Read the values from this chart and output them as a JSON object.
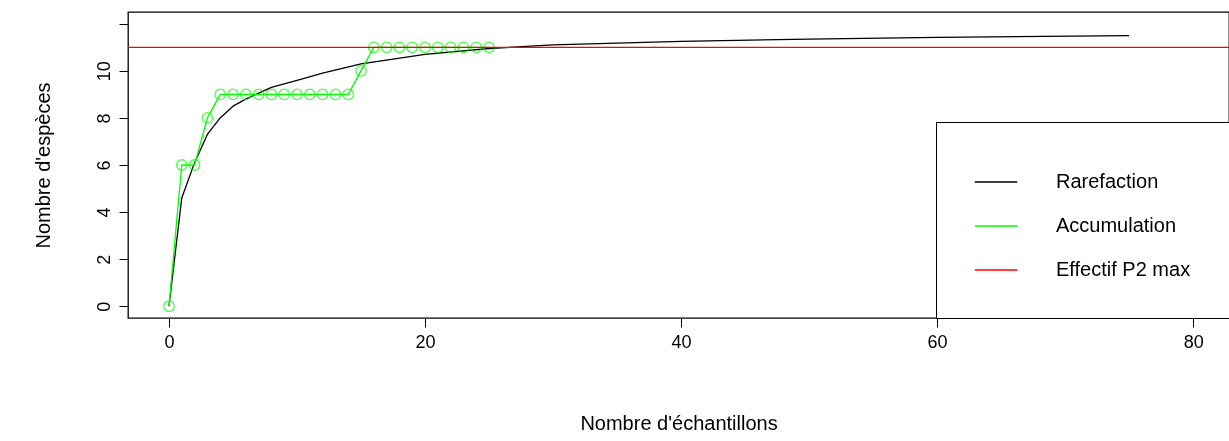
{
  "chart_data": {
    "type": "line",
    "xlabel": "Nombre d'échantillons",
    "ylabel": "Nombre d'espèces",
    "xlim": [
      -3.2,
      82.8
    ],
    "ylim": [
      -0.5,
      12.5
    ],
    "xticks": [
      0,
      20,
      40,
      60,
      80
    ],
    "yticks": [
      0,
      2,
      4,
      6,
      8,
      10,
      {
        "value": 12,
        "label": null
      }
    ],
    "grid": false,
    "legend": "bottom right",
    "series": [
      {
        "name": "Rarefaction",
        "color": "#000000",
        "x": [
          0,
          1,
          2,
          3,
          4,
          5,
          6,
          8,
          10,
          12,
          15,
          20,
          25,
          30,
          40,
          50,
          60,
          75
        ],
        "values": [
          0,
          4.6,
          6.1,
          7.3,
          8.0,
          8.5,
          8.8,
          9.3,
          9.6,
          9.9,
          10.3,
          10.7,
          10.95,
          11.1,
          11.25,
          11.35,
          11.42,
          11.5
        ]
      },
      {
        "name": "Accumulation",
        "color": "#00ff00",
        "marker": "circle",
        "x": [
          0,
          1,
          2,
          3,
          4,
          5,
          6,
          7,
          8,
          9,
          10,
          11,
          12,
          13,
          14,
          15,
          16,
          17,
          18,
          19,
          20,
          21,
          22,
          23,
          24,
          25
        ],
        "values": [
          0,
          6,
          6,
          8,
          9,
          9,
          9,
          9,
          9,
          9,
          9,
          9,
          9,
          9,
          9,
          10,
          11,
          11,
          11,
          11,
          11,
          11,
          11,
          11,
          11,
          11
        ]
      }
    ],
    "ref_lines": [
      {
        "axis": "y",
        "value": 11,
        "label": "Effectif P2 max",
        "color": "#ff0000"
      }
    ]
  }
}
